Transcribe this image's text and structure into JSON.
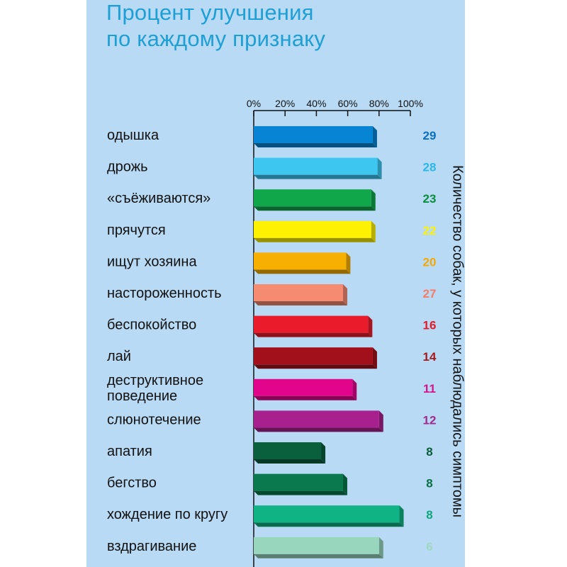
{
  "title": {
    "line1": "Процент улучшения",
    "line2": "по каждому признаку"
  },
  "side_label": "Количество собак, у которых наблюдались симптомы",
  "chart_data": {
    "type": "bar",
    "orientation": "horizontal",
    "title": "Процент улучшения по каждому признаку",
    "xlim": [
      0,
      100
    ],
    "x_ticks": [
      "0%",
      "20%",
      "40%",
      "60%",
      "80%",
      "100%"
    ],
    "x_tick_values": [
      0,
      20,
      40,
      60,
      80,
      100
    ],
    "grid": false,
    "categories": [
      "одышка",
      "дрожь",
      "«съёживаются»",
      "прячутся",
      "ищут хозяина",
      "настороженность",
      "беспокойство",
      "лай",
      "деструктивное\nповедение",
      "слюнотечение",
      "апатия",
      "бегство",
      "хождение по кругу",
      "вздрагивание"
    ],
    "values": [
      76,
      79,
      75,
      75,
      59,
      57,
      73,
      76,
      63,
      80,
      43,
      57,
      93,
      80
    ],
    "counts": [
      "29",
      "28",
      "23",
      "22",
      "20",
      "27",
      "16",
      "14",
      "11",
      "12",
      "8",
      "8",
      "8",
      "6"
    ],
    "colors": [
      "#0785d4",
      "#3cc6f0",
      "#10a64a",
      "#fff200",
      "#f7b000",
      "#f58b70",
      "#ea1c2b",
      "#a2101b",
      "#e2058c",
      "#a8208e",
      "#0a5f3d",
      "#0a7a4e",
      "#10b383",
      "#98d6bd"
    ],
    "count_colors": [
      "#0a6fc1",
      "#2bb8e8",
      "#0a8d3c",
      "#fff200",
      "#f7a800",
      "#f47c68",
      "#e31b26",
      "#a41a1e",
      "#d4168a",
      "#a02a8e",
      "#0a5d3a",
      "#0b6f45",
      "#10a57a",
      "#9fd8c2"
    ]
  }
}
